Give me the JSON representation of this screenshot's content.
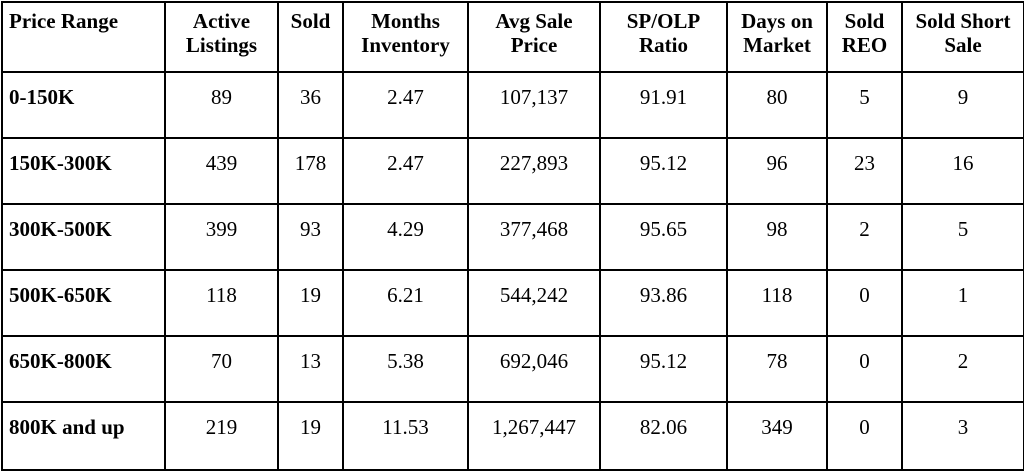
{
  "table": {
    "headers": [
      "Price Range",
      "Active Listings",
      "Sold",
      "Months Inventory",
      "Avg Sale Price",
      "SP/OLP Ratio",
      "Days on Market",
      "Sold REO",
      "Sold Short Sale"
    ],
    "rows": [
      [
        "0-150K",
        "89",
        "36",
        "2.47",
        "107,137",
        "91.91",
        "80",
        "5",
        "9"
      ],
      [
        "150K-300K",
        "439",
        "178",
        "2.47",
        "227,893",
        "95.12",
        "96",
        "23",
        "16"
      ],
      [
        "300K-500K",
        "399",
        "93",
        "4.29",
        "377,468",
        "95.65",
        "98",
        "2",
        "5"
      ],
      [
        "500K-650K",
        "118",
        "19",
        "6.21",
        "544,242",
        "93.86",
        "118",
        "0",
        "1"
      ],
      [
        "650K-800K",
        "70",
        "13",
        "5.38",
        "692,046",
        "95.12",
        "78",
        "0",
        "2"
      ],
      [
        "800K and up",
        "219",
        "19",
        "11.53",
        "1,267,447",
        "82.06",
        "349",
        "0",
        "3"
      ]
    ]
  }
}
